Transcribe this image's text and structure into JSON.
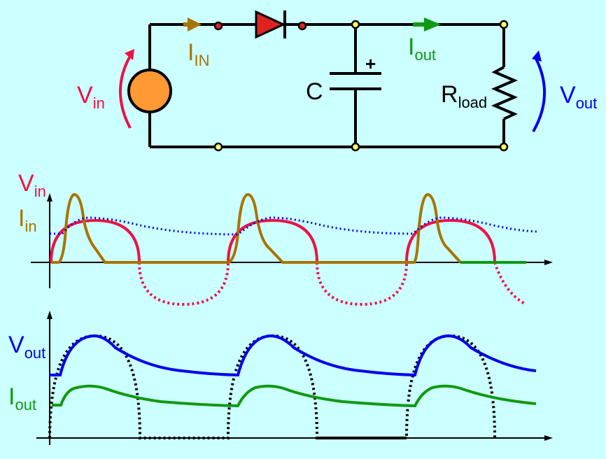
{
  "colors": {
    "background": "#ccffff",
    "wire": "#000000",
    "vin": "#ee1144",
    "iin": "#a87400",
    "vout": "#0000ee",
    "iout": "#119911",
    "source_fill": "#ff9933",
    "diode_fill": "#dd2222",
    "node_fill": "#ffff66"
  },
  "circuit": {
    "vin_label": {
      "main": "V",
      "sub": "in"
    },
    "iin_label": {
      "main": "I",
      "sub": "IN"
    },
    "cap_label": "C",
    "cap_polarity": "+",
    "iout_label": {
      "main": "I",
      "sub": "out"
    },
    "rload_label": {
      "main": "R",
      "sub": "load"
    },
    "vout_label": {
      "main": "V",
      "sub": "out"
    }
  },
  "top_plot": {
    "vin_label": {
      "main": "V",
      "sub": "in"
    },
    "iin_label": {
      "main": "I",
      "sub": "in"
    }
  },
  "bottom_plot": {
    "vout_label": {
      "main": "V",
      "sub": "out"
    },
    "iout_label": {
      "main": "I",
      "sub": "out"
    }
  }
}
